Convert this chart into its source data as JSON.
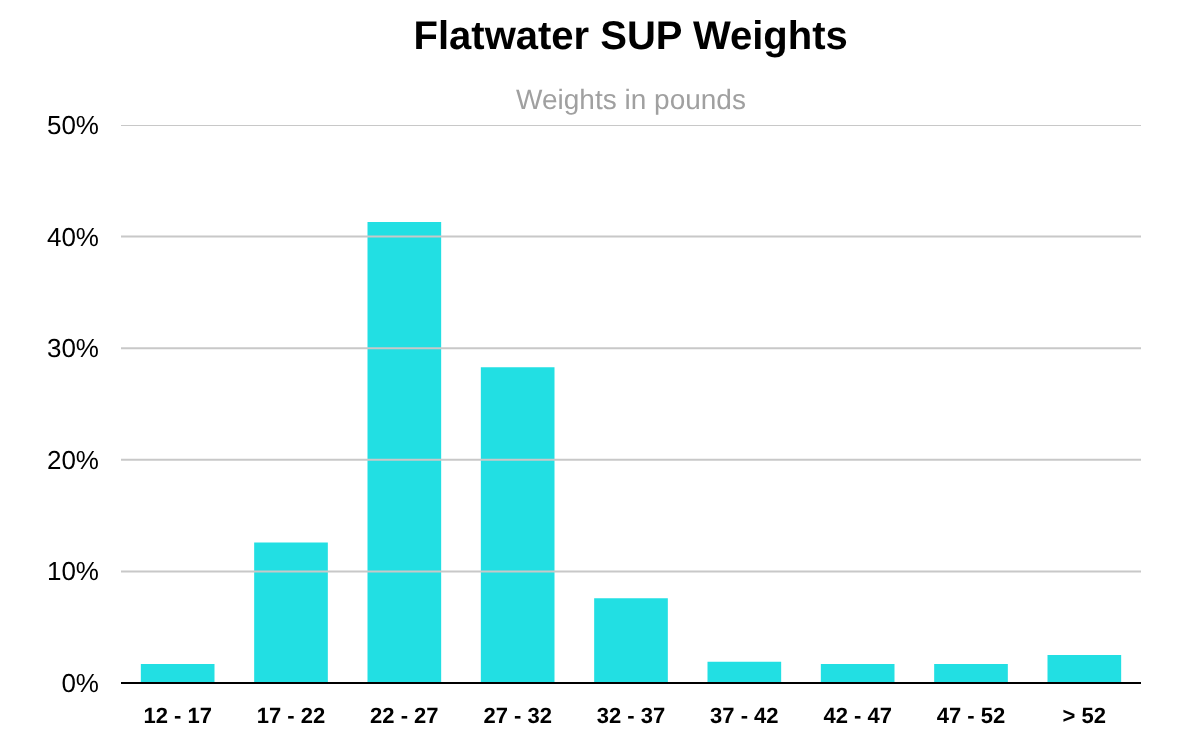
{
  "chart_data": {
    "type": "bar",
    "title": "Flatwater SUP Weights",
    "subtitle": "Weights in pounds",
    "categories": [
      "12 - 17",
      "17 - 22",
      "22 - 27",
      "27 - 32",
      "32 - 37",
      "37 - 42",
      "42 - 47",
      "47 - 52",
      "> 52"
    ],
    "values": [
      1.7,
      12.6,
      41.3,
      28.3,
      7.6,
      1.9,
      1.7,
      1.7,
      2.5
    ],
    "color": "#22dfe3",
    "ylim": [
      0,
      50
    ],
    "yticks": [
      {
        "value": 0,
        "label": "0%"
      },
      {
        "value": 10,
        "label": "10%"
      },
      {
        "value": 20,
        "label": "20%"
      },
      {
        "value": 30,
        "label": "30%"
      },
      {
        "value": 40,
        "label": "40%"
      },
      {
        "value": 50,
        "label": "50%"
      }
    ],
    "grid": "y"
  }
}
